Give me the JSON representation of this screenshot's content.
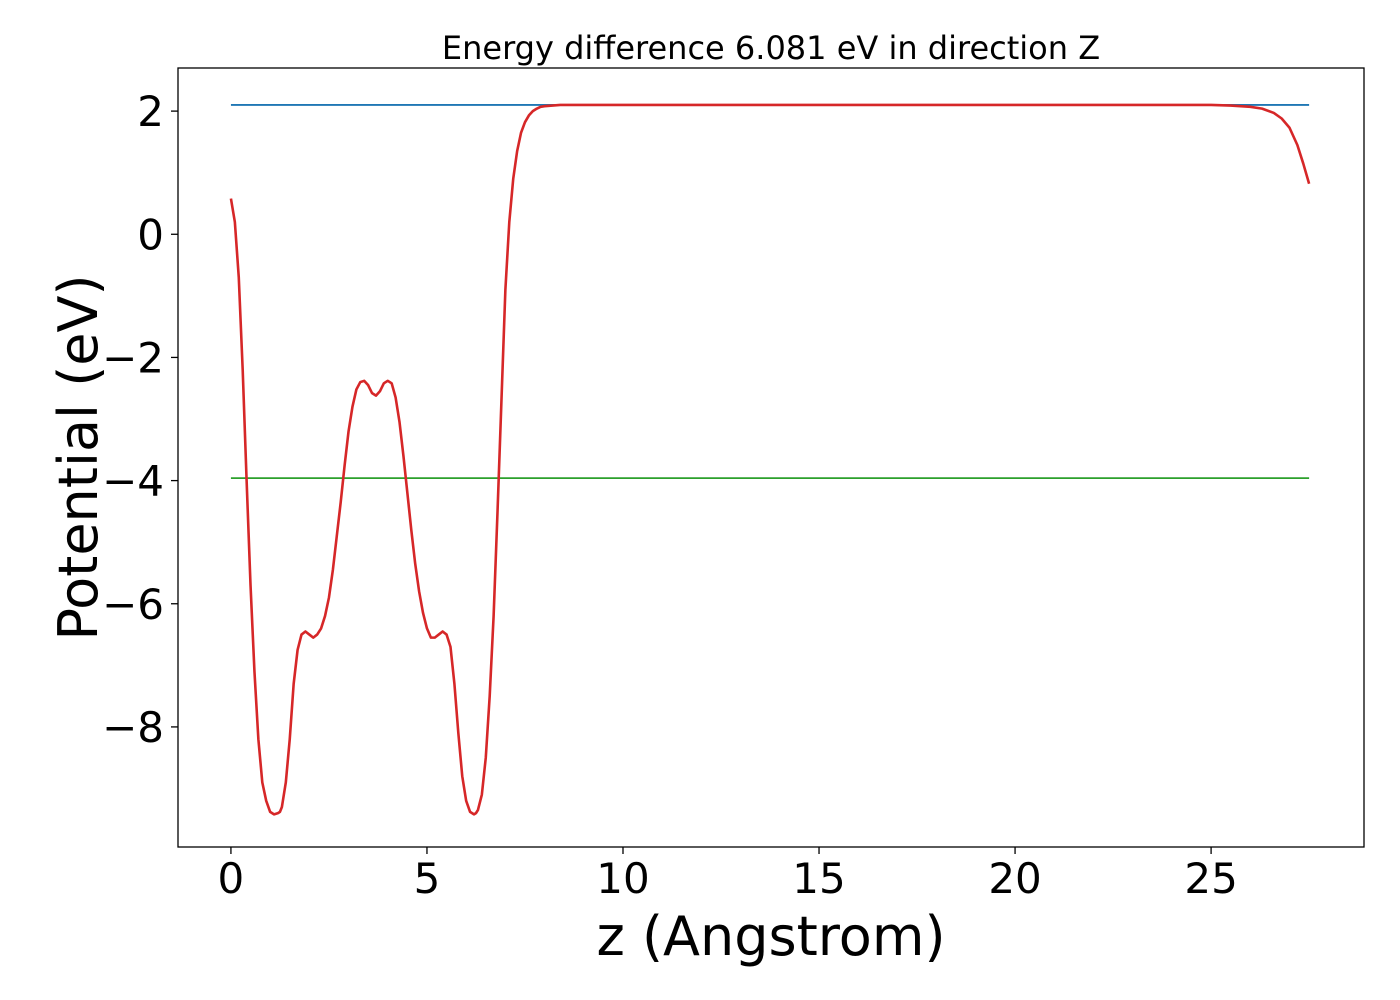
{
  "chart_data": {
    "type": "line",
    "title": "Energy difference 6.081 eV in direction Z",
    "xlabel": "z (Angstrom)",
    "ylabel": "Potential (eV)",
    "xlim": [
      -1.35,
      28.9
    ],
    "ylim": [
      -9.95,
      2.7
    ],
    "xticks": [
      0,
      5,
      10,
      15,
      20,
      25
    ],
    "yticks": [
      2,
      0,
      -2,
      -4,
      -6,
      -8
    ],
    "xtick_labels": [
      "0",
      "5",
      "10",
      "15",
      "20",
      "25"
    ],
    "ytick_labels": [
      "2",
      "0",
      "−2",
      "−4",
      "−6",
      "−8"
    ],
    "grid": false,
    "series": [
      {
        "color": "#d62728",
        "x": [
          0.0,
          0.1,
          0.2,
          0.3,
          0.4,
          0.5,
          0.6,
          0.7,
          0.8,
          0.9,
          1.0,
          1.1,
          1.2,
          1.25,
          1.3,
          1.4,
          1.5,
          1.6,
          1.7,
          1.8,
          1.9,
          2.0,
          2.1,
          2.2,
          2.3,
          2.4,
          2.5,
          2.6,
          2.7,
          2.8,
          2.9,
          3.0,
          3.1,
          3.2,
          3.3,
          3.4,
          3.5,
          3.6,
          3.7,
          3.8,
          3.9,
          4.0,
          4.1,
          4.2,
          4.3,
          4.4,
          4.5,
          4.6,
          4.7,
          4.8,
          4.9,
          5.0,
          5.1,
          5.2,
          5.3,
          5.4,
          5.5,
          5.6,
          5.7,
          5.8,
          5.9,
          6.0,
          6.1,
          6.2,
          6.25,
          6.3,
          6.4,
          6.5,
          6.6,
          6.7,
          6.8,
          6.9,
          7.0,
          7.1,
          7.2,
          7.3,
          7.4,
          7.5,
          7.6,
          7.7,
          7.8,
          7.9,
          8.0,
          8.2,
          8.4,
          8.6,
          8.8,
          9.0,
          9.5,
          10.0,
          12.0,
          15.0,
          20.0,
          24.0,
          25.0,
          25.5,
          26.0,
          26.3,
          26.6,
          26.8,
          27.0,
          27.2,
          27.35,
          27.5
        ],
        "y": [
          0.58,
          0.2,
          -0.7,
          -2.2,
          -4.0,
          -5.7,
          -7.1,
          -8.2,
          -8.9,
          -9.2,
          -9.38,
          -9.42,
          -9.4,
          -9.38,
          -9.3,
          -8.9,
          -8.2,
          -7.3,
          -6.75,
          -6.5,
          -6.45,
          -6.5,
          -6.55,
          -6.5,
          -6.4,
          -6.2,
          -5.9,
          -5.45,
          -4.9,
          -4.35,
          -3.75,
          -3.2,
          -2.8,
          -2.52,
          -2.4,
          -2.38,
          -2.45,
          -2.58,
          -2.62,
          -2.55,
          -2.42,
          -2.38,
          -2.42,
          -2.65,
          -3.05,
          -3.6,
          -4.2,
          -4.8,
          -5.35,
          -5.8,
          -6.15,
          -6.4,
          -6.55,
          -6.55,
          -6.5,
          -6.45,
          -6.5,
          -6.7,
          -7.3,
          -8.1,
          -8.8,
          -9.2,
          -9.38,
          -9.42,
          -9.4,
          -9.35,
          -9.1,
          -8.5,
          -7.5,
          -6.2,
          -4.5,
          -2.7,
          -0.9,
          0.2,
          0.9,
          1.35,
          1.65,
          1.82,
          1.93,
          2.0,
          2.04,
          2.07,
          2.08,
          2.09,
          2.1,
          2.1,
          2.1,
          2.1,
          2.1,
          2.1,
          2.1,
          2.1,
          2.1,
          2.1,
          2.1,
          2.09,
          2.07,
          2.04,
          1.97,
          1.88,
          1.73,
          1.45,
          1.15,
          0.82
        ]
      },
      {
        "color": "#1f77b4",
        "x": [
          0,
          27.5
        ],
        "y": [
          2.1,
          2.1
        ]
      },
      {
        "color": "#2ca02c",
        "x": [
          0,
          27.5
        ],
        "y": [
          -3.96,
          -3.96
        ]
      }
    ]
  }
}
